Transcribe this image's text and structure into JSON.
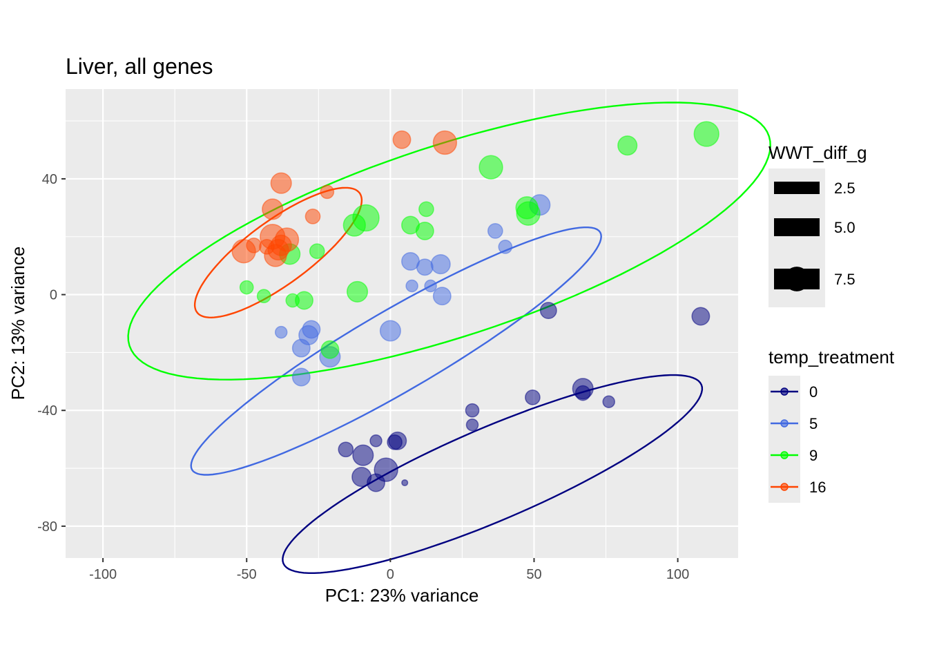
{
  "chart_data": {
    "type": "scatter",
    "title": "Liver, all genes",
    "xlabel": "PC1: 23% variance",
    "ylabel": "PC2: 13% variance",
    "xlim": [
      -113,
      121
    ],
    "ylim": [
      -91,
      71
    ],
    "xticks": [
      -100,
      -50,
      0,
      50,
      100
    ],
    "yticks": [
      -80,
      -40,
      0,
      40
    ],
    "grid": true,
    "legend_placement": "right",
    "size_legend": {
      "title": "WWT_diff_g",
      "entries": [
        {
          "label": "2.5",
          "value": 2.5
        },
        {
          "label": "5.0",
          "value": 5.0
        },
        {
          "label": "7.5",
          "value": 7.5
        }
      ]
    },
    "color_legend": {
      "title": "temp_treatment",
      "entries": [
        {
          "label": "0",
          "color": "#000080"
        },
        {
          "label": "5",
          "color": "#4169E1"
        },
        {
          "label": "9",
          "color": "#00FF00"
        },
        {
          "label": "16",
          "color": "#FF4500"
        }
      ]
    },
    "ellipses": [
      {
        "group": "0",
        "center": [
          35.5,
          -62
        ],
        "rx": 79,
        "ry": 16,
        "angle": 23
      },
      {
        "group": "5",
        "center": [
          2,
          -19.5
        ],
        "rx": 82,
        "ry": 14,
        "angle": 30
      },
      {
        "group": "9",
        "center": [
          20.5,
          18.5
        ],
        "rx": 117,
        "ry": 33,
        "angle": 18
      },
      {
        "group": "16",
        "center": [
          -39,
          14.5
        ],
        "rx": 35,
        "ry": 11,
        "angle": 36
      }
    ],
    "series": [
      {
        "group": "0",
        "color": "#000080",
        "points": [
          {
            "x": 55,
            "y": -5.5,
            "w": 4.5
          },
          {
            "x": 108,
            "y": -7.5,
            "w": 5
          },
          {
            "x": 67,
            "y": -32.5,
            "w": 6
          },
          {
            "x": 67,
            "y": -34,
            "w": 4
          },
          {
            "x": 49.5,
            "y": -35.5,
            "w": 4
          },
          {
            "x": 76,
            "y": -37,
            "w": 3
          },
          {
            "x": 28.5,
            "y": -40,
            "w": 3.5
          },
          {
            "x": 28.5,
            "y": -45,
            "w": 3
          },
          {
            "x": -5,
            "y": -50.5,
            "w": 3
          },
          {
            "x": 2.5,
            "y": -50.5,
            "w": 5
          },
          {
            "x": 1.5,
            "y": -51,
            "w": 4
          },
          {
            "x": -15.5,
            "y": -53.5,
            "w": 4
          },
          {
            "x": -9.5,
            "y": -55.5,
            "w": 6
          },
          {
            "x": -1.5,
            "y": -60.5,
            "w": 7
          },
          {
            "x": -10,
            "y": -63,
            "w": 5.5
          },
          {
            "x": -5,
            "y": -65,
            "w": 5
          },
          {
            "x": 5,
            "y": -65,
            "w": 1
          }
        ]
      },
      {
        "group": "5",
        "color": "#4169E1",
        "points": [
          {
            "x": 52,
            "y": 31,
            "w": 6
          },
          {
            "x": 36.5,
            "y": 22,
            "w": 4
          },
          {
            "x": 40,
            "y": 16.5,
            "w": 3.5
          },
          {
            "x": 7,
            "y": 11.5,
            "w": 5
          },
          {
            "x": 12,
            "y": 9.5,
            "w": 4.5
          },
          {
            "x": 17.5,
            "y": 10.5,
            "w": 5.5
          },
          {
            "x": 7.5,
            "y": 3,
            "w": 3
          },
          {
            "x": 14,
            "y": 3,
            "w": 3
          },
          {
            "x": 18,
            "y": -0.5,
            "w": 5
          },
          {
            "x": 0,
            "y": -12.5,
            "w": 6
          },
          {
            "x": -27.5,
            "y": -12,
            "w": 5
          },
          {
            "x": -28.5,
            "y": -14,
            "w": 5.5
          },
          {
            "x": -38,
            "y": -13,
            "w": 3
          },
          {
            "x": -31,
            "y": -18.5,
            "w": 5
          },
          {
            "x": -21,
            "y": -21.5,
            "w": 6
          },
          {
            "x": -31,
            "y": -28.5,
            "w": 5
          }
        ]
      },
      {
        "group": "9",
        "color": "#00FF00",
        "points": [
          {
            "x": 110,
            "y": 55.5,
            "w": 7.5
          },
          {
            "x": 82.5,
            "y": 51.5,
            "w": 5.5
          },
          {
            "x": 35,
            "y": 44,
            "w": 7
          },
          {
            "x": 47.5,
            "y": 30,
            "w": 6.5
          },
          {
            "x": 48,
            "y": 28,
            "w": 7
          },
          {
            "x": 12.5,
            "y": 29.5,
            "w": 4
          },
          {
            "x": -8.5,
            "y": 26.5,
            "w": 8
          },
          {
            "x": -12.5,
            "y": 24,
            "w": 6.5
          },
          {
            "x": 7,
            "y": 24,
            "w": 5
          },
          {
            "x": 12,
            "y": 22,
            "w": 5
          },
          {
            "x": -35,
            "y": 14,
            "w": 6
          },
          {
            "x": -25.5,
            "y": 15,
            "w": 4
          },
          {
            "x": -50,
            "y": 2.5,
            "w": 3.5
          },
          {
            "x": -44,
            "y": -0.5,
            "w": 3.5
          },
          {
            "x": -34,
            "y": -2,
            "w": 3.5
          },
          {
            "x": -30,
            "y": -2,
            "w": 5
          },
          {
            "x": -11.5,
            "y": 1,
            "w": 6
          },
          {
            "x": -21,
            "y": -19,
            "w": 5
          }
        ]
      },
      {
        "group": "16",
        "color": "#FF4500",
        "points": [
          {
            "x": 4,
            "y": 53.5,
            "w": 5
          },
          {
            "x": 19,
            "y": 52.5,
            "w": 7
          },
          {
            "x": -38,
            "y": 38.5,
            "w": 6
          },
          {
            "x": -22,
            "y": 35.5,
            "w": 3.5
          },
          {
            "x": -41,
            "y": 29.5,
            "w": 6
          },
          {
            "x": -27,
            "y": 27,
            "w": 4
          },
          {
            "x": -41,
            "y": 20,
            "w": 7.5
          },
          {
            "x": -36,
            "y": 19,
            "w": 7
          },
          {
            "x": -47.5,
            "y": 17,
            "w": 4
          },
          {
            "x": -38,
            "y": 17,
            "w": 6
          },
          {
            "x": -43,
            "y": 16.5,
            "w": 4
          },
          {
            "x": -39,
            "y": 15.5,
            "w": 6
          },
          {
            "x": -51,
            "y": 15,
            "w": 7
          },
          {
            "x": -40,
            "y": 13.5,
            "w": 6.5
          }
        ]
      }
    ]
  }
}
